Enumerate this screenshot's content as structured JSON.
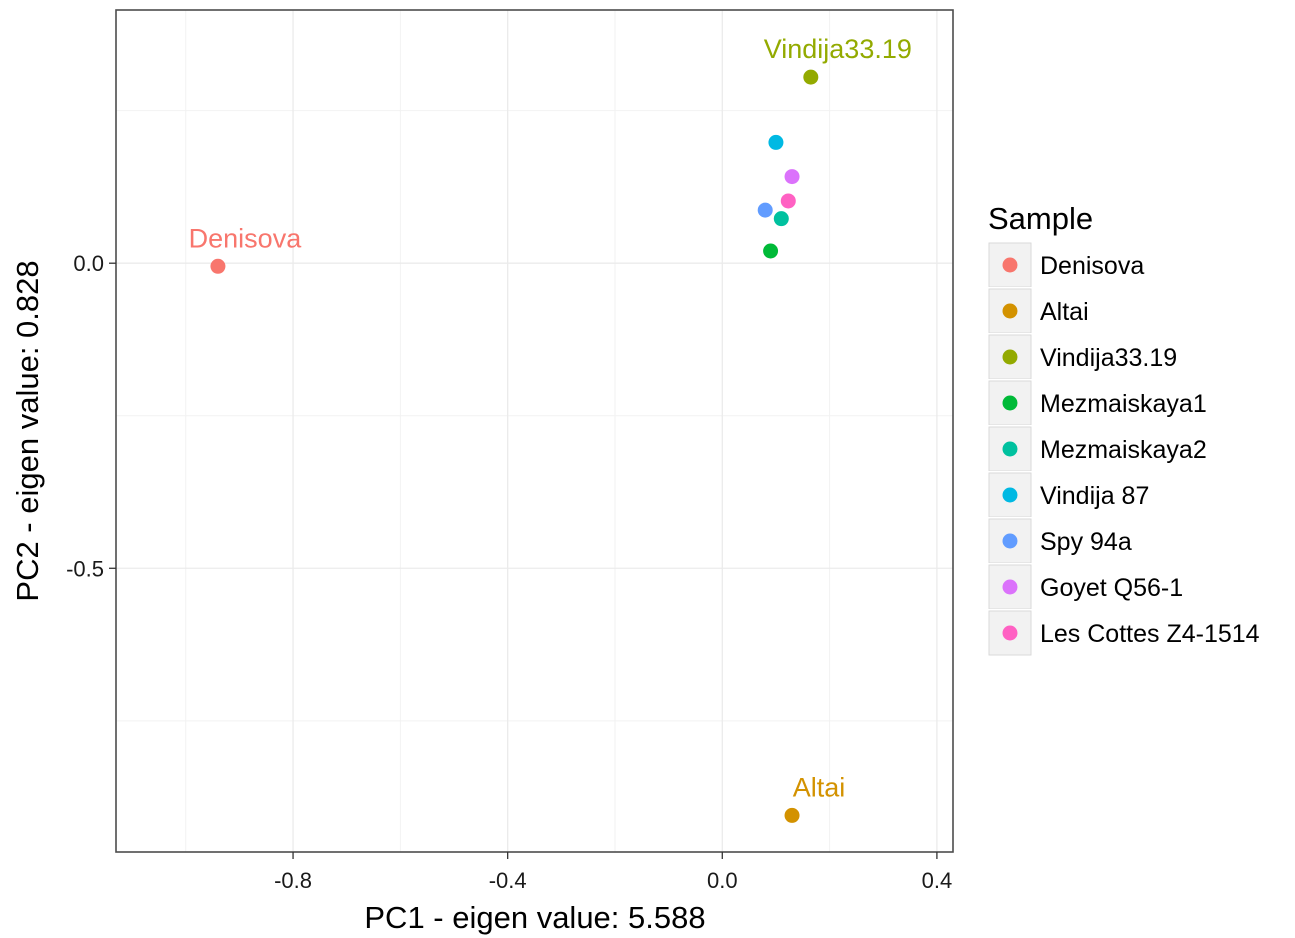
{
  "chart_data": {
    "type": "scatter",
    "xlabel": "PC1 - eigen value: 5.588",
    "ylabel": "PC2 - eigen value: 0.828",
    "xlim": [
      -1.13,
      0.43
    ],
    "ylim": [
      -0.965,
      0.415
    ],
    "x_ticks": [
      {
        "value": -0.8,
        "label": "-0.8"
      },
      {
        "value": -0.4,
        "label": "-0.4"
      },
      {
        "value": 0.0,
        "label": "0.0"
      },
      {
        "value": 0.4,
        "label": "0.4"
      }
    ],
    "y_ticks": [
      {
        "value": 0.0,
        "label": "0.0"
      },
      {
        "value": -0.5,
        "label": "-0.5"
      }
    ],
    "grid": true,
    "legend_position": "right",
    "legend_title": "Sample",
    "series": [
      {
        "name": "Denisova",
        "color": "#F8766D",
        "x": -0.94,
        "y": -0.005,
        "label": "Denisova"
      },
      {
        "name": "Altai",
        "color": "#D39200",
        "x": 0.13,
        "y": -0.905,
        "label": "Altai"
      },
      {
        "name": "Vindija33.19",
        "color": "#93AA00",
        "x": 0.165,
        "y": 0.305,
        "label": "Vindija33.19"
      },
      {
        "name": "Mezmaiskaya1",
        "color": "#00BA38",
        "x": 0.09,
        "y": 0.02,
        "label": ""
      },
      {
        "name": "Mezmaiskaya2",
        "color": "#00C19F",
        "x": 0.11,
        "y": 0.073,
        "label": ""
      },
      {
        "name": "Vindija 87",
        "color": "#00B9E3",
        "x": 0.1,
        "y": 0.198,
        "label": ""
      },
      {
        "name": "Spy 94a",
        "color": "#619CFF",
        "x": 0.08,
        "y": 0.087,
        "label": ""
      },
      {
        "name": "Goyet Q56-1",
        "color": "#DB72FB",
        "x": 0.13,
        "y": 0.142,
        "label": ""
      },
      {
        "name": "Les Cottes Z4-1514",
        "color": "#FF61C3",
        "x": 0.123,
        "y": 0.102,
        "label": ""
      }
    ]
  }
}
